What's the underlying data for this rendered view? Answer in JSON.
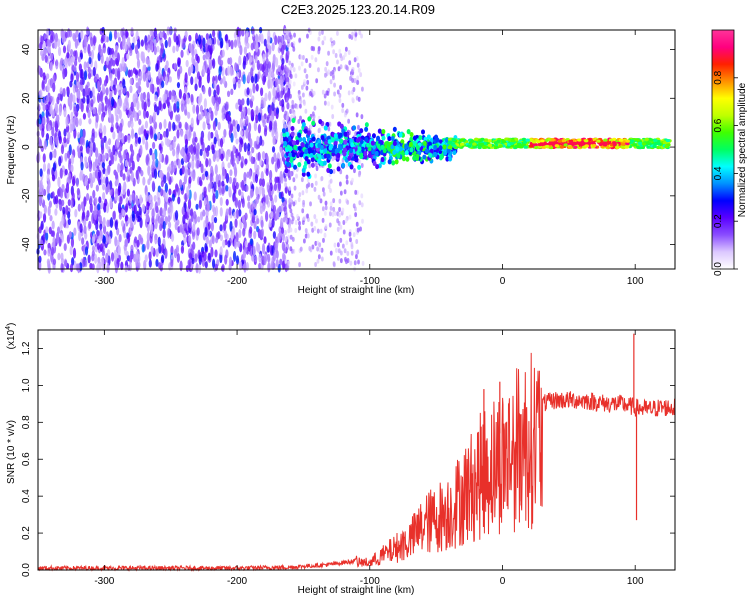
{
  "figure": {
    "title": "C2E3.2025.123.20.14.R09"
  },
  "chart_data": [
    {
      "type": "heatmap",
      "title": "C2E3.2025.123.20.14.R09",
      "xlabel": "Height of straight line (km)",
      "ylabel": "Frequency (Hz)",
      "xlim": [
        -350,
        130
      ],
      "ylim": [
        -50,
        48
      ],
      "xticks": [
        -300,
        -200,
        -100,
        0,
        100
      ],
      "yticks": [
        -40,
        -20,
        0,
        20,
        40
      ],
      "colorbar": {
        "label": "Normalized spectral amplitude",
        "range": [
          0,
          1
        ],
        "ticks": [
          "0.0",
          "0.2",
          "0.4",
          "0.6",
          "0.8"
        ],
        "colors": [
          "#ffffff",
          "#dcc8ff",
          "#8a4dff",
          "#5a00ff",
          "#0000ff",
          "#0090ff",
          "#00ffff",
          "#00ff60",
          "#40ff00",
          "#c0ff00",
          "#ffff00",
          "#ff9000",
          "#ff2000",
          "#ff0080",
          "#ff3399"
        ]
      },
      "description_regions": [
        {
          "x_range": [
            -350,
            -160
          ],
          "freq_range": [
            -50,
            48
          ],
          "level": "low (0.1-0.3)"
        },
        {
          "x_range": [
            -160,
            -40
          ],
          "freq_range": [
            -15,
            15
          ],
          "level": "medium (0.2-0.5)"
        },
        {
          "x_range": [
            -40,
            125
          ],
          "freq_range": [
            -1,
            4
          ],
          "level": "high (0.6-1.0)"
        }
      ]
    },
    {
      "type": "line",
      "xlabel": "Height of straight line (km)",
      "ylabel": "SNR (10 * v/v)",
      "yscale_label": "(x10^4)",
      "xlim": [
        -350,
        130
      ],
      "ylim": [
        0,
        1.3
      ],
      "xticks": [
        -300,
        -200,
        -100,
        0,
        100
      ],
      "yticks": [
        "0.0",
        "0.2",
        "0.4",
        "0.6",
        "0.8",
        "1.0",
        "1.2"
      ],
      "series": [
        {
          "color": "#e8302a",
          "x": [
            -350,
            -300,
            -250,
            -200,
            -160,
            -130,
            -110,
            -100,
            -90,
            -80,
            -70,
            -60,
            -50,
            -40,
            -30,
            -20,
            -10,
            0,
            10,
            20,
            30,
            40,
            50,
            60,
            70,
            80,
            90,
            100,
            110,
            120,
            130
          ],
          "y": [
            0.01,
            0.01,
            0.01,
            0.01,
            0.015,
            0.03,
            0.05,
            0.05,
            0.1,
            0.15,
            0.2,
            0.3,
            0.35,
            0.4,
            0.5,
            0.6,
            0.7,
            0.75,
            0.82,
            0.88,
            0.9,
            0.92,
            0.92,
            0.92,
            0.91,
            0.9,
            0.9,
            0.88,
            0.87,
            0.88,
            0.88
          ]
        }
      ],
      "spikes": [
        {
          "x": -2,
          "y": 1.02
        },
        {
          "x": -14,
          "y": 0.98
        },
        {
          "x": 99,
          "y": 1.28
        },
        {
          "x": 101,
          "y": 0.27
        },
        {
          "x": 14,
          "y": 0.35
        }
      ]
    }
  ]
}
